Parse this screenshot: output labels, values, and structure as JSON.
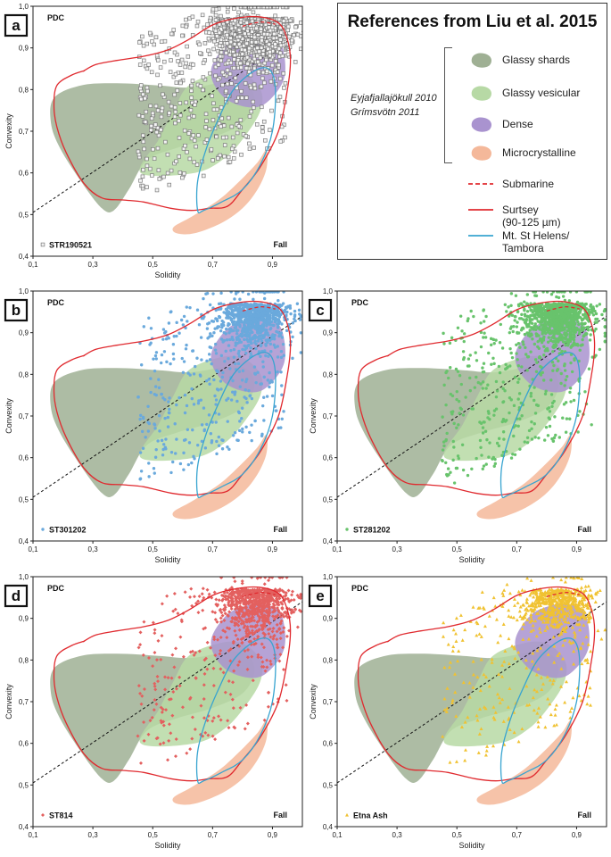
{
  "chart_data": {
    "type": "scatter",
    "xlabel": "Solidity",
    "ylabel": "Convexity",
    "xlim": [
      0.1,
      1.0
    ],
    "ylim": [
      0.4,
      1.0
    ],
    "x_ticks": [
      "0,1",
      "0,3",
      "0,5",
      "0,7",
      "0,9"
    ],
    "y_ticks": [
      "0,4",
      "0,5",
      "0,6",
      "0,7",
      "0,8",
      "0,9",
      "1,0"
    ],
    "region_labels": {
      "top_left": "PDC",
      "bottom_right": "Fall"
    },
    "divider_line": {
      "style": "dashed",
      "from": [
        0.1,
        0.505
      ],
      "to": [
        1.0,
        0.94
      ]
    },
    "reference_fields": [
      {
        "name": "Glassy shards",
        "color": "#9fb094",
        "outline": [
          [
            0.16,
            0.72
          ],
          [
            0.17,
            0.78
          ],
          [
            0.26,
            0.81
          ],
          [
            0.38,
            0.815
          ],
          [
            0.52,
            0.81
          ],
          [
            0.63,
            0.805
          ],
          [
            0.76,
            0.82
          ],
          [
            0.82,
            0.81
          ],
          [
            0.84,
            0.77
          ],
          [
            0.8,
            0.72
          ],
          [
            0.7,
            0.685
          ],
          [
            0.58,
            0.66
          ],
          [
            0.48,
            0.63
          ],
          [
            0.42,
            0.56
          ],
          [
            0.37,
            0.51
          ],
          [
            0.33,
            0.515
          ],
          [
            0.26,
            0.58
          ],
          [
            0.19,
            0.66
          ]
        ]
      },
      {
        "name": "Glassy vesicular",
        "color": "#b7d9a5",
        "outline": [
          [
            0.46,
            0.6
          ],
          [
            0.52,
            0.68
          ],
          [
            0.57,
            0.75
          ],
          [
            0.62,
            0.81
          ],
          [
            0.72,
            0.84
          ],
          [
            0.8,
            0.84
          ],
          [
            0.86,
            0.8
          ],
          [
            0.86,
            0.75
          ],
          [
            0.81,
            0.69
          ],
          [
            0.74,
            0.635
          ],
          [
            0.64,
            0.6
          ]
        ]
      },
      {
        "name": "Dense",
        "color": "#a993cf",
        "outline": [
          [
            0.7,
            0.86
          ],
          [
            0.75,
            0.91
          ],
          [
            0.81,
            0.93
          ],
          [
            0.86,
            0.935
          ],
          [
            0.92,
            0.92
          ],
          [
            0.94,
            0.88
          ],
          [
            0.94,
            0.83
          ],
          [
            0.91,
            0.79
          ],
          [
            0.86,
            0.76
          ],
          [
            0.8,
            0.76
          ],
          [
            0.74,
            0.78
          ],
          [
            0.7,
            0.82
          ]
        ]
      },
      {
        "name": "Microcrystalline",
        "color": "#f4b89a",
        "outline": [
          [
            0.57,
            0.47
          ],
          [
            0.63,
            0.495
          ],
          [
            0.72,
            0.535
          ],
          [
            0.79,
            0.58
          ],
          [
            0.85,
            0.625
          ],
          [
            0.88,
            0.655
          ],
          [
            0.88,
            0.61
          ],
          [
            0.85,
            0.56
          ],
          [
            0.8,
            0.515
          ],
          [
            0.73,
            0.48
          ],
          [
            0.64,
            0.455
          ],
          [
            0.58,
            0.455
          ]
        ]
      }
    ],
    "reference_lines": [
      {
        "name": "Submarine",
        "color": "#e02a2f",
        "style": "dashed",
        "points": [
          [
            0.8,
            0.952
          ],
          [
            0.86,
            0.962
          ],
          [
            0.91,
            0.957
          ]
        ]
      },
      {
        "name": "Surtsey (90-125 µm)",
        "color": "#e02a2f",
        "style": "solid",
        "points": [
          [
            0.27,
            0.845
          ],
          [
            0.23,
            0.835
          ],
          [
            0.18,
            0.81
          ],
          [
            0.17,
            0.76
          ],
          [
            0.18,
            0.71
          ],
          [
            0.21,
            0.65
          ],
          [
            0.27,
            0.575
          ],
          [
            0.33,
            0.54
          ],
          [
            0.4,
            0.535
          ],
          [
            0.47,
            0.53
          ],
          [
            0.56,
            0.515
          ],
          [
            0.63,
            0.51
          ],
          [
            0.69,
            0.515
          ],
          [
            0.75,
            0.52
          ],
          [
            0.8,
            0.56
          ],
          [
            0.86,
            0.615
          ],
          [
            0.92,
            0.7
          ],
          [
            0.95,
            0.8
          ],
          [
            0.96,
            0.87
          ],
          [
            0.95,
            0.92
          ],
          [
            0.92,
            0.96
          ],
          [
            0.85,
            0.975
          ],
          [
            0.77,
            0.97
          ],
          [
            0.7,
            0.955
          ],
          [
            0.62,
            0.92
          ],
          [
            0.55,
            0.895
          ],
          [
            0.47,
            0.88
          ],
          [
            0.38,
            0.87
          ],
          [
            0.31,
            0.86
          ],
          [
            0.27,
            0.845
          ]
        ]
      },
      {
        "name": "Mt. St Helens/ Tambora",
        "color": "#38a4d0",
        "style": "solid",
        "points": [
          [
            0.65,
            0.51
          ],
          [
            0.65,
            0.58
          ],
          [
            0.68,
            0.66
          ],
          [
            0.72,
            0.73
          ],
          [
            0.77,
            0.8
          ],
          [
            0.84,
            0.845
          ],
          [
            0.89,
            0.848
          ],
          [
            0.91,
            0.8
          ],
          [
            0.9,
            0.7
          ],
          [
            0.86,
            0.62
          ],
          [
            0.8,
            0.56
          ],
          [
            0.73,
            0.53
          ],
          [
            0.67,
            0.51
          ]
        ]
      }
    ],
    "panels": [
      {
        "panel_label": "a",
        "sample": "STR190521",
        "marker": "square",
        "color": "#7a7a7a",
        "point_count": 1450,
        "x_center": 0.84,
        "x_spread": 0.06,
        "y_center": 0.93,
        "y_spread": 0.05
      },
      {
        "panel_label": "b",
        "sample": "ST301202",
        "marker": "circle",
        "color": "#6aa9dc",
        "point_count": 1100,
        "x_center": 0.84,
        "x_spread": 0.06,
        "y_center": 0.93,
        "y_spread": 0.05
      },
      {
        "panel_label": "c",
        "sample": "ST281202",
        "marker": "circle",
        "color": "#68c36c",
        "point_count": 1300,
        "x_center": 0.84,
        "x_spread": 0.06,
        "y_center": 0.93,
        "y_spread": 0.05
      },
      {
        "panel_label": "d",
        "sample": "ST814",
        "marker": "diamond",
        "color": "#e3605f",
        "point_count": 950,
        "x_center": 0.84,
        "x_spread": 0.06,
        "y_center": 0.93,
        "y_spread": 0.05
      },
      {
        "panel_label": "e",
        "sample": "Etna Ash",
        "marker": "triangle",
        "color": "#f0c232",
        "point_count": 800,
        "x_center": 0.84,
        "x_spread": 0.06,
        "y_center": 0.93,
        "y_spread": 0.05
      }
    ],
    "legend": {
      "title": "References from Liu et al. 2015",
      "sources": [
        "Eyjafjallajökull 2010",
        "Grímsvötn 2011"
      ],
      "items": [
        {
          "label": "Glassy shards",
          "kind": "field",
          "color": "#9fb094"
        },
        {
          "label": "Glassy vesicular",
          "kind": "field",
          "color": "#b7d9a5"
        },
        {
          "label": "Dense",
          "kind": "field",
          "color": "#a993cf"
        },
        {
          "label": "Microcrystalline",
          "kind": "field",
          "color": "#f4b89a"
        },
        {
          "label": "Submarine",
          "kind": "dashed-line",
          "color": "#e02a2f"
        },
        {
          "label": "Surtsey\n(90-125 µm)",
          "kind": "line",
          "color": "#e02a2f"
        },
        {
          "label": "Mt. St Helens/\nTambora",
          "kind": "line",
          "color": "#38a4d0"
        }
      ]
    }
  }
}
